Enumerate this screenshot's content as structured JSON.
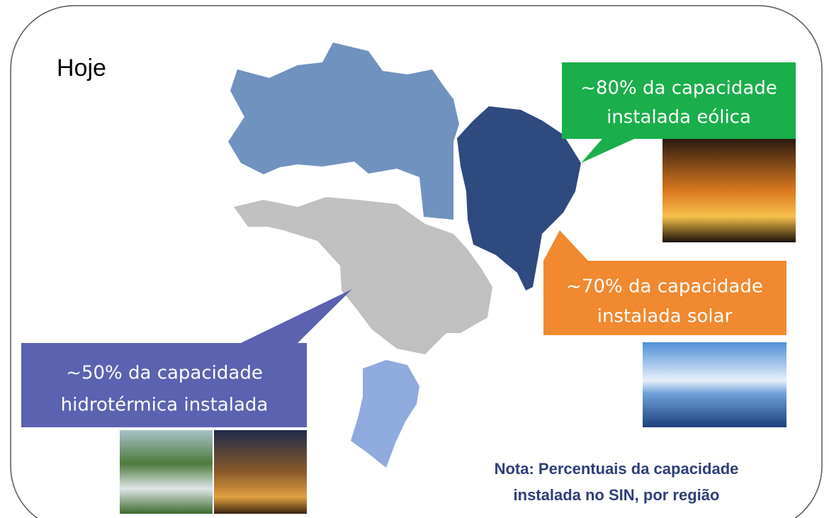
{
  "title": "Hoje",
  "callouts": [
    {
      "lines": [
        "~80% da capacidade",
        "instalada eólica"
      ]
    },
    {
      "lines": [
        "~70% da capacidade",
        "instalada solar"
      ]
    },
    {
      "lines": [
        "~50% da capacidade",
        "hidrotérmica instalada"
      ]
    }
  ],
  "note": {
    "lines": [
      "Nota: Percentuais da capacidade",
      "instalada no SIN, por região"
    ]
  }
}
